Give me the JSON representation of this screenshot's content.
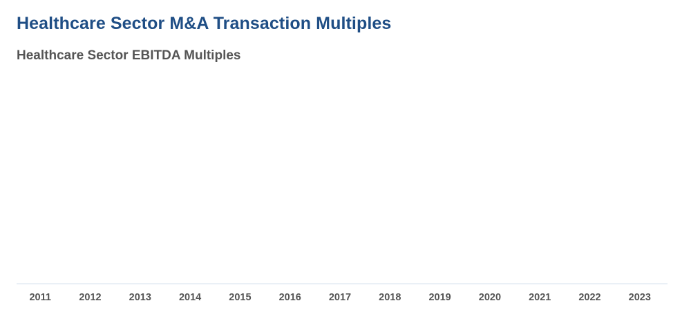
{
  "title": "Healthcare Sector M&A Transaction Multiples",
  "colors": {
    "title": "#1f4e85",
    "subtitle": "#555555",
    "axis_line": "#e4ebf3",
    "tick_label": "#555555"
  },
  "chart_data": {
    "type": "bar",
    "title": "Healthcare Sector EBITDA Multiples",
    "xlabel": "",
    "ylabel": "",
    "categories": [
      "2011",
      "2012",
      "2013",
      "2014",
      "2015",
      "2016",
      "2017",
      "2018",
      "2019",
      "2020",
      "2021",
      "2022",
      "2023"
    ],
    "grid": false,
    "legend": "none"
  }
}
